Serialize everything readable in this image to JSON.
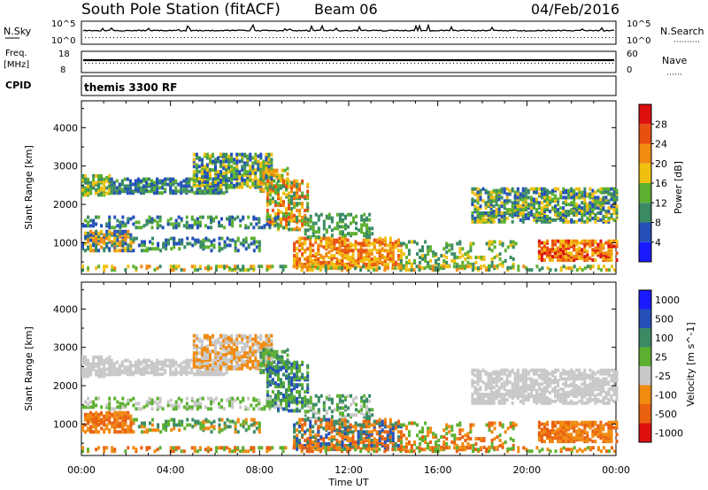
{
  "chart_data": {
    "type": "heatmap",
    "header": {
      "station": "South Pole Station (fitACF)",
      "beam": "Beam 06",
      "date": "04/Feb/2016"
    },
    "strip_labels": {
      "nsky": "N.Sky",
      "nsearch": "N.Search",
      "nsky_tick_hi": "10^5",
      "nsky_tick_lo": "10^0",
      "freq": "Freq.",
      "freq_unit": "[MHz]",
      "freq_tick_hi": "18",
      "freq_tick_lo": "8",
      "nave": "Nave",
      "nave_tick_hi": "60",
      "nave_tick_lo": "0",
      "cpid": "CPID",
      "cpid_value": "themis 3300 RF"
    },
    "xaxis": {
      "label": "Time UT",
      "range_hours": [
        0,
        24
      ],
      "ticks": [
        "00:00",
        "04:00",
        "08:00",
        "12:00",
        "16:00",
        "20:00",
        "00:00"
      ]
    },
    "yaxis": {
      "label": "Slant Range [km]",
      "range_km": [
        180,
        4700
      ],
      "ticks": [
        "1000",
        "2000",
        "3000",
        "4000"
      ]
    },
    "power_panel": {
      "colorbar_label": "Power [dB]",
      "colorbar_ticks": [
        "4",
        "8",
        "12",
        "16",
        "20",
        "24",
        "28"
      ],
      "colorbar_colors": [
        "#1a1aff",
        "#2450b8",
        "#3a8a64",
        "#5cb030",
        "#f0c010",
        "#f08a10",
        "#e85010",
        "#dd1010"
      ],
      "range_db": [
        0,
        32
      ]
    },
    "velocity_panel": {
      "colorbar_label": "Velocity [m s^-1]",
      "colorbar_ticks": [
        "1000",
        "500",
        "100",
        "25",
        "-25",
        "-100",
        "-500",
        "-1000"
      ],
      "colorbar_colors": [
        "#1a1aff",
        "#2450b8",
        "#3a8a64",
        "#5cb030",
        "#c8c8c8",
        "#f08a10",
        "#e86010",
        "#dd1010"
      ]
    },
    "echo_regions": [
      {
        "t": [
          0.0,
          1.3
        ],
        "r": [
          2200,
          2700
        ],
        "pclass": [
          2,
          3,
          4
        ],
        "vclass": [
          4
        ],
        "dens": 0.55
      },
      {
        "t": [
          1.3,
          6.5
        ],
        "r": [
          2250,
          2650
        ],
        "pclass": [
          1,
          2,
          3
        ],
        "vclass": [
          4
        ],
        "dens": 0.6
      },
      {
        "t": [
          5.0,
          8.5
        ],
        "r": [
          2400,
          3300
        ],
        "pclass": [
          1,
          2,
          3,
          4
        ],
        "vclass": [
          4,
          5
        ],
        "dens": 0.55
      },
      {
        "t": [
          8.0,
          9.3
        ],
        "r": [
          2300,
          2900
        ],
        "pclass": [
          3,
          4,
          5
        ],
        "vclass": [
          2,
          3
        ],
        "dens": 0.5
      },
      {
        "t": [
          8.3,
          10.2
        ],
        "r": [
          1300,
          2600
        ],
        "pclass": [
          2,
          3,
          4,
          5,
          6
        ],
        "vclass": [
          1,
          2,
          3
        ],
        "dens": 0.45
      },
      {
        "t": [
          0.0,
          9.0
        ],
        "r": [
          1350,
          1650
        ],
        "pclass": [
          1,
          2,
          3
        ],
        "vclass": [
          3,
          4
        ],
        "dens": 0.3
      },
      {
        "t": [
          0.0,
          2.3
        ],
        "r": [
          750,
          1250
        ],
        "pclass": [
          1,
          2,
          4,
          5
        ],
        "vclass": [
          5,
          6
        ],
        "dens": 0.55
      },
      {
        "t": [
          2.3,
          8.0
        ],
        "r": [
          750,
          1100
        ],
        "pclass": [
          1,
          2,
          3
        ],
        "vclass": [
          2,
          3,
          5
        ],
        "dens": 0.3
      },
      {
        "t": [
          9.5,
          14.3
        ],
        "r": [
          300,
          1100
        ],
        "pclass": [
          4,
          5,
          6
        ],
        "vclass": [
          5,
          6,
          1,
          2
        ],
        "dens": 0.5
      },
      {
        "t": [
          10.0,
          13.0
        ],
        "r": [
          1100,
          1700
        ],
        "pclass": [
          2,
          3
        ],
        "vclass": [
          2,
          3,
          4
        ],
        "dens": 0.3
      },
      {
        "t": [
          14.3,
          19.5
        ],
        "r": [
          300,
          1000
        ],
        "pclass": [
          2,
          3,
          4
        ],
        "vclass": [
          3,
          5,
          6
        ],
        "dens": 0.25
      },
      {
        "t": [
          17.5,
          24.0
        ],
        "r": [
          1500,
          2400
        ],
        "pclass": [
          1,
          2,
          3,
          4
        ],
        "vclass": [
          4
        ],
        "dens": 0.55
      },
      {
        "t": [
          20.5,
          24.0
        ],
        "r": [
          500,
          1000
        ],
        "pclass": [
          4,
          5,
          6,
          7
        ],
        "vclass": [
          5,
          6
        ],
        "dens": 0.5
      },
      {
        "t": [
          0.0,
          24.0
        ],
        "r": [
          200,
          380
        ],
        "pclass": [
          2,
          3,
          4,
          5
        ],
        "vclass": [
          3,
          5,
          6
        ],
        "dens": 0.35
      }
    ]
  }
}
